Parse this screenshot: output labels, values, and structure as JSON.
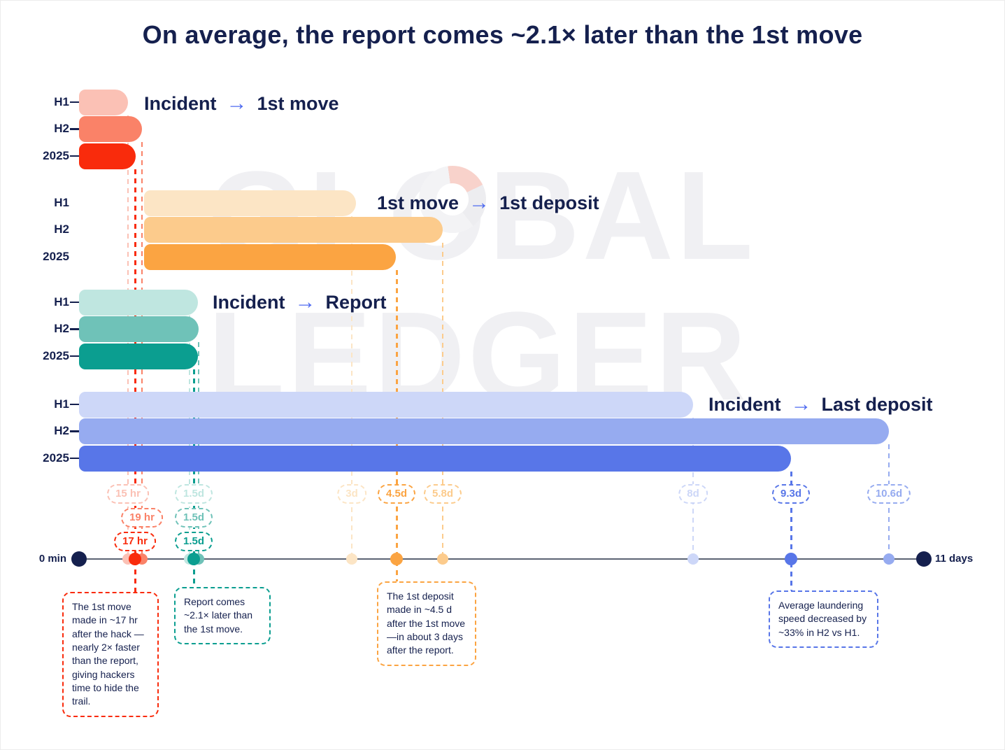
{
  "title": "On average, the report comes ~2.1× later than the 1st move",
  "watermark": {
    "line1": "GLOBAL",
    "line2": "LEDGER"
  },
  "colors": {
    "navy": "#15204E",
    "arrow_blue": "#4F6BF0",
    "axis": "#5C6474",
    "background": "#FFFFFF",
    "watermark": "#F0F0F3",
    "watermark_accent": "#F8D2CB"
  },
  "glyphs": {
    "arrow": "→"
  },
  "chart_data": {
    "type": "bar",
    "orientation": "horizontal-timeline",
    "unit": "days",
    "axis": {
      "min_label": "0 min",
      "max_label": "11 days",
      "range_days": [
        0,
        11
      ],
      "grid": false
    },
    "groups": [
      {
        "from": "Incident",
        "to": "1st move",
        "categories": [
          "H1",
          "H2",
          "2025"
        ],
        "values_label": [
          "15 hr",
          "19 hr",
          "17 hr"
        ],
        "values_days": [
          0.63,
          0.79,
          0.71
        ],
        "palette": [
          "#FBC1B5",
          "#FA8268",
          "#F92B0C"
        ]
      },
      {
        "from": "1st move",
        "to": "1st deposit",
        "categories": [
          "H1",
          "H2",
          "2025"
        ],
        "values_label": [
          "3d",
          "5.8d",
          "4.5d"
        ],
        "values_days": [
          3,
          5.8,
          4.5
        ],
        "palette": [
          "#FCE5C5",
          "#FCCB8C",
          "#FBA442"
        ]
      },
      {
        "from": "Incident",
        "to": "Report",
        "categories": [
          "H1",
          "H2",
          "2025"
        ],
        "values_label": [
          "1.5d",
          "1.5d",
          "1.5d"
        ],
        "values_days": [
          1.5,
          1.5,
          1.5
        ],
        "palette": [
          "#BFE6E0",
          "#6FC2B8",
          "#0B9E90"
        ]
      },
      {
        "from": "Incident",
        "to": "Last deposit",
        "categories": [
          "H1",
          "H2",
          "2025"
        ],
        "values_label": [
          "8d",
          "10.6d",
          "9.3d"
        ],
        "values_days": [
          8,
          10.6,
          9.3
        ],
        "palette": [
          "#CDD7F8",
          "#96ABF0",
          "#5876E8"
        ]
      }
    ]
  },
  "notes": [
    {
      "text": "The 1st move made in ~17 hr after the hack —nearly 2× faster than the report, giving hackers time to hide the trail.",
      "accent": "#F92B0C"
    },
    {
      "text": "Report comes ~2.1× later than the 1st move.",
      "accent": "#0B9E90"
    },
    {
      "text": "The 1st deposit made in ~4.5 d after the 1st move—in about 3 days after the report.",
      "accent": "#FBA442"
    },
    {
      "text": "Average laundering speed decreased by ~33% in H2 vs H1.",
      "accent": "#5876E8"
    }
  ]
}
